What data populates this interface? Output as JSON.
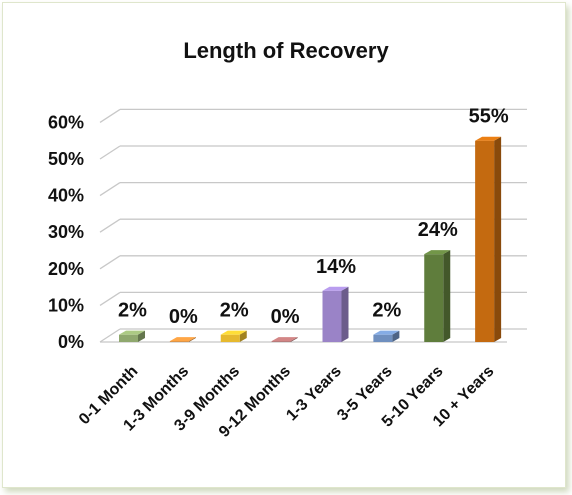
{
  "chart_data": {
    "type": "bar",
    "title": "Length of Recovery",
    "xlabel": "",
    "ylabel": "",
    "categories": [
      "0-1 Month",
      "1-3 Months",
      "3-9 Months",
      "9-12 Months",
      "1-3 Years",
      "3-5 Years",
      "5-10 Years",
      "10 + Years"
    ],
    "values": [
      2,
      0,
      2,
      0,
      14,
      2,
      24,
      55
    ],
    "value_labels": [
      "2%",
      "0%",
      "2%",
      "0%",
      "14%",
      "2%",
      "24%",
      "55%"
    ],
    "colors": [
      "#8fa86e",
      "#d98a3a",
      "#e6b92e",
      "#b07070",
      "#9a83c7",
      "#6f8fbf",
      "#5f7d3c",
      "#c46a10"
    ],
    "yticks": [
      "0%",
      "10%",
      "20%",
      "30%",
      "40%",
      "50%",
      "60%"
    ],
    "ylim": [
      0,
      60
    ],
    "grid": true,
    "legend": "none",
    "style": "3d-column"
  }
}
